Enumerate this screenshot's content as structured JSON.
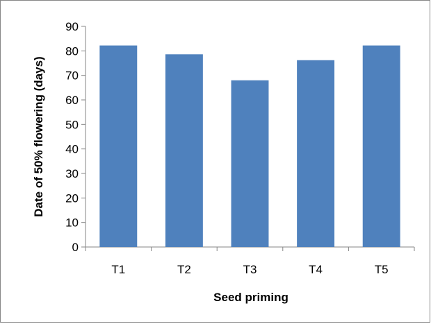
{
  "chart_data": {
    "type": "bar",
    "categories": [
      "T1",
      "T2",
      "T3",
      "T4",
      "T5"
    ],
    "values": [
      82.2,
      78.6,
      68.0,
      76.2,
      82.2
    ],
    "xlabel": "Seed priming",
    "ylabel": "Date of 50% flowering (days)",
    "ylim": [
      0,
      90
    ],
    "yticks": [
      0,
      10,
      20,
      30,
      40,
      50,
      60,
      70,
      80,
      90
    ],
    "grid": false,
    "legend": "none",
    "bar_color": "#4F81BD"
  }
}
